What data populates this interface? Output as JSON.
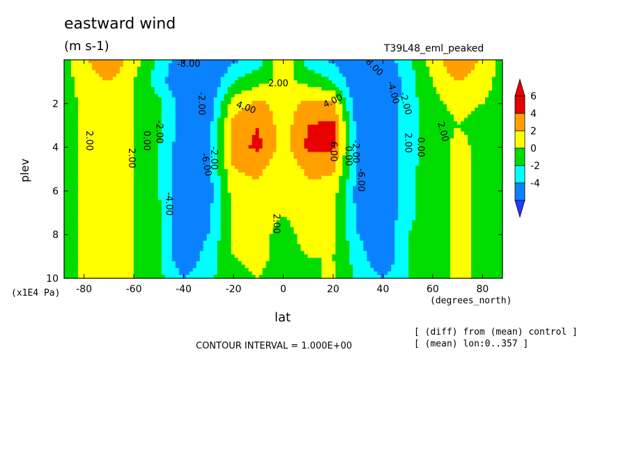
{
  "header": {
    "title": "eastward wind",
    "units": "(m s-1)",
    "run": "T39L48_eml_peaked"
  },
  "axes": {
    "ylabel": "plev",
    "yunit": "(x1E4 Pa)",
    "xlabel": "lat",
    "xunit": "(degrees_north)"
  },
  "footer": {
    "interval": "CONTOUR INTERVAL = 1.000E+00",
    "note1": "[ (diff) from (mean) control ]",
    "note2": "[ (mean) lon:0..357 ]"
  },
  "chart_data": {
    "type": "heatmap",
    "title": "eastward wind",
    "subtitle": "(m s-1)",
    "xlabel": "lat",
    "ylabel": "plev",
    "xlim": [
      -88,
      88
    ],
    "ylim": [
      10,
      0
    ],
    "xticks": [
      -80,
      -60,
      -40,
      -20,
      0,
      20,
      40,
      60,
      80
    ],
    "yticks": [
      2,
      4,
      6,
      8,
      10
    ],
    "x": [
      -88,
      -80,
      -70,
      -60,
      -50,
      -40,
      -30,
      -20,
      -10,
      0,
      10,
      20,
      30,
      40,
      50,
      60,
      70,
      80,
      88
    ],
    "y": [
      0,
      1,
      2,
      3,
      4,
      5,
      6,
      7,
      8,
      9,
      10
    ],
    "values": [
      [
        1.5,
        3.5,
        6.0,
        3.0,
        -0.5,
        -3.5,
        -4.0,
        -2.5,
        -1.0,
        4.5,
        -1.0,
        -2.5,
        -4.0,
        -3.5,
        -0.5,
        3.0,
        6.0,
        3.5,
        1.5
      ],
      [
        1.0,
        3.0,
        4.0,
        2.0,
        -1.0,
        -4.5,
        -4.0,
        0.0,
        1.5,
        2.5,
        1.5,
        0.0,
        -4.0,
        -4.5,
        -1.0,
        2.0,
        4.0,
        3.0,
        1.0
      ],
      [
        1.0,
        2.5,
        3.0,
        2.0,
        0.5,
        -3.0,
        -3.5,
        3.0,
        4.5,
        3.0,
        4.5,
        4.5,
        -4.0,
        -4.0,
        -1.0,
        1.5,
        2.5,
        2.0,
        1.0
      ],
      [
        1.0,
        2.5,
        2.5,
        2.0,
        0.5,
        -3.0,
        -3.0,
        5.0,
        6.0,
        3.0,
        6.0,
        6.5,
        -3.0,
        -4.0,
        -1.0,
        1.0,
        2.0,
        1.5,
        1.0
      ],
      [
        1.0,
        2.5,
        2.5,
        2.0,
        0.0,
        -3.5,
        -2.5,
        5.0,
        6.5,
        3.0,
        6.5,
        6.5,
        -2.5,
        -3.5,
        -1.0,
        1.0,
        2.5,
        1.5,
        1.0
      ],
      [
        1.0,
        2.5,
        2.5,
        2.0,
        0.0,
        -4.0,
        -2.5,
        4.0,
        4.5,
        2.5,
        4.5,
        4.5,
        -2.5,
        -4.0,
        -0.5,
        1.0,
        2.5,
        1.5,
        1.0
      ],
      [
        1.0,
        2.5,
        2.5,
        2.0,
        0.0,
        -4.0,
        -3.0,
        3.0,
        3.5,
        2.5,
        3.5,
        3.0,
        -3.0,
        -4.0,
        -0.5,
        1.0,
        2.5,
        1.5,
        1.0
      ],
      [
        1.0,
        2.5,
        2.5,
        2.0,
        0.5,
        -4.0,
        -2.5,
        2.5,
        3.0,
        2.0,
        3.0,
        2.5,
        -2.5,
        -4.0,
        -0.5,
        1.0,
        2.5,
        1.5,
        1.0
      ],
      [
        1.0,
        2.5,
        2.5,
        2.0,
        0.5,
        -4.0,
        -2.0,
        2.5,
        2.5,
        1.5,
        2.5,
        2.5,
        -2.0,
        -4.0,
        0.0,
        1.0,
        2.5,
        1.5,
        1.0
      ],
      [
        1.0,
        2.5,
        2.5,
        2.0,
        0.5,
        -4.0,
        -1.0,
        2.0,
        2.5,
        1.5,
        2.0,
        2.0,
        -1.0,
        -4.0,
        0.0,
        1.0,
        2.5,
        1.5,
        1.0
      ],
      [
        1.0,
        2.5,
        2.5,
        2.0,
        0.5,
        -2.0,
        -0.5,
        1.5,
        2.0,
        1.0,
        1.5,
        2.5,
        -0.5,
        -2.0,
        0.0,
        1.0,
        2.5,
        1.5,
        1.0
      ]
    ],
    "contour_labels": [
      {
        "text": "2.00",
        "lat": -78,
        "plev": 3.7,
        "rotate": 90
      },
      {
        "text": "2.00",
        "lat": -61,
        "plev": 4.5,
        "rotate": 90
      },
      {
        "text": "0.00",
        "lat": -55,
        "plev": 3.7,
        "rotate": 90
      },
      {
        "text": "-2.00",
        "lat": -50,
        "plev": 3.3,
        "rotate": 90
      },
      {
        "text": "-4.00",
        "lat": -46,
        "plev": 6.6,
        "rotate": 90
      },
      {
        "text": "-6.00",
        "lat": -31,
        "plev": 4.8,
        "rotate": 80
      },
      {
        "text": "-2.00",
        "lat": -28,
        "plev": 4.5,
        "rotate": 90
      },
      {
        "text": "-8.00",
        "lat": -38,
        "plev": 0.2,
        "rotate": 0
      },
      {
        "text": "-2.00",
        "lat": -33,
        "plev": 2.0,
        "rotate": 90
      },
      {
        "text": "2.00",
        "lat": -2,
        "plev": 1.1,
        "rotate": 0
      },
      {
        "text": "4.00",
        "lat": -15,
        "plev": 2.2,
        "rotate": 20
      },
      {
        "text": "4.00",
        "lat": 20,
        "plev": 1.9,
        "rotate": -25
      },
      {
        "text": "6.00",
        "lat": 20,
        "plev": 4.2,
        "rotate": 90
      },
      {
        "text": "2.00",
        "lat": -3,
        "plev": 7.5,
        "rotate": 90
      },
      {
        "text": "0.00",
        "lat": 26,
        "plev": 4.4,
        "rotate": 90
      },
      {
        "text": "-2.00",
        "lat": 29,
        "plev": 4.2,
        "rotate": 90
      },
      {
        "text": "-6.00",
        "lat": 31,
        "plev": 5.5,
        "rotate": 90
      },
      {
        "text": "-8.00",
        "lat": 36,
        "plev": 0.3,
        "rotate": 45
      },
      {
        "text": "-4.00",
        "lat": 44,
        "plev": 1.5,
        "rotate": 75
      },
      {
        "text": "-2.00",
        "lat": 49,
        "plev": 2.0,
        "rotate": 75
      },
      {
        "text": "2.00",
        "lat": 50,
        "plev": 3.8,
        "rotate": 90
      },
      {
        "text": "0.00",
        "lat": 55,
        "plev": 4.0,
        "rotate": 90
      },
      {
        "text": "2.00",
        "lat": 64,
        "plev": 3.3,
        "rotate": 75
      }
    ],
    "legend": {
      "ticks": [
        "6",
        "4",
        "2",
        "0",
        "-2",
        "-4"
      ],
      "colors": [
        "#e60000",
        "#ffa000",
        "#ffff00",
        "#00dc00",
        "#00ffff",
        "#0a82ff"
      ],
      "arrow_top": "#e60000",
      "arrow_bottom": "#1e3cff"
    },
    "level_colors": [
      {
        "min": -99,
        "max": -6,
        "color": "#1e3cff"
      },
      {
        "min": -6,
        "max": -4,
        "color": "#0a82ff"
      },
      {
        "min": -4,
        "max": -2,
        "color": "#0a82ff"
      },
      {
        "min": -2,
        "max": 0,
        "color": "#00ffff"
      },
      {
        "min": 0,
        "max": 2,
        "color": "#00dc00"
      },
      {
        "min": 2,
        "max": 4,
        "color": "#ffff00"
      },
      {
        "min": 4,
        "max": 6,
        "color": "#ffa000"
      },
      {
        "min": 6,
        "max": 99,
        "color": "#e60000"
      }
    ],
    "grid": false
  }
}
